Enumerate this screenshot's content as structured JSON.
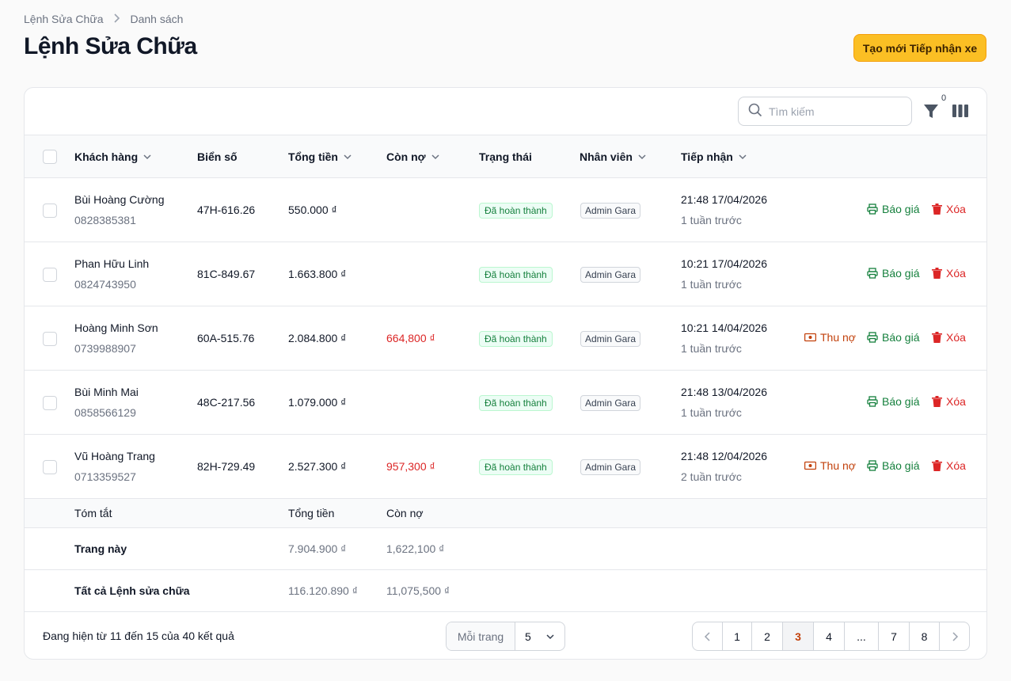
{
  "breadcrumb": {
    "root": "Lệnh Sửa Chữa",
    "current": "Danh sách"
  },
  "page_title": "Lệnh Sửa Chữa",
  "create_button": "Tạo mới Tiếp nhận xe",
  "toolbar": {
    "search_placeholder": "Tìm kiếm",
    "filter_count": "0"
  },
  "columns": {
    "customer": "Khách hàng",
    "plate": "Biển số",
    "total": "Tổng tiền",
    "debt": "Còn nợ",
    "status": "Trạng thái",
    "staff": "Nhân viên",
    "received": "Tiếp nhận"
  },
  "rows": [
    {
      "name": "Bùi Hoàng Cường",
      "phone": "0828385381",
      "plate": "47H-616.26",
      "total": "550.000 ₫",
      "debt": "",
      "status": "Đã hoàn thành",
      "staff": "Admin Gara",
      "time": "21:48 17/04/2026",
      "ago": "1 tuần trước"
    },
    {
      "name": "Phan Hữu Linh",
      "phone": "0824743950",
      "plate": "81C-849.67",
      "total": "1.663.800 ₫",
      "debt": "",
      "status": "Đã hoàn thành",
      "staff": "Admin Gara",
      "time": "10:21 17/04/2026",
      "ago": "1 tuần trước"
    },
    {
      "name": "Hoàng Minh Sơn",
      "phone": "0739988907",
      "plate": "60A-515.76",
      "total": "2.084.800 ₫",
      "debt": "664,800 ₫",
      "status": "Đã hoàn thành",
      "staff": "Admin Gara",
      "time": "10:21 14/04/2026",
      "ago": "1 tuần trước"
    },
    {
      "name": "Bùi Minh Mai",
      "phone": "0858566129",
      "plate": "48C-217.56",
      "total": "1.079.000 ₫",
      "debt": "",
      "status": "Đã hoàn thành",
      "staff": "Admin Gara",
      "time": "21:48 13/04/2026",
      "ago": "1 tuần trước"
    },
    {
      "name": "Vũ Hoàng Trang",
      "phone": "0713359527",
      "plate": "82H-729.49",
      "total": "2.527.300 ₫",
      "debt": "957,300 ₫",
      "status": "Đã hoàn thành",
      "staff": "Admin Gara",
      "time": "21:48 12/04/2026",
      "ago": "2 tuần trước"
    }
  ],
  "actions": {
    "collect": "Thu nợ",
    "quote": "Báo giá",
    "delete": "Xóa"
  },
  "summary": {
    "head": {
      "label": "Tóm tắt",
      "total": "Tổng tiền",
      "debt": "Còn nợ"
    },
    "page": {
      "label": "Trang này",
      "total": "7.904.900 ₫",
      "debt": "1,622,100 ₫"
    },
    "all": {
      "label": "Tất cả Lệnh sửa chữa",
      "total": "116.120.890 ₫",
      "debt": "11,075,500 ₫"
    }
  },
  "footer": {
    "showing": "Đang hiện từ 11 đến 15 của 40 kết quả",
    "per_page_label": "Mỗi trang",
    "per_page_value": "5",
    "pages": [
      "1",
      "2",
      "3",
      "4",
      "...",
      "7",
      "8"
    ],
    "current_page": "3"
  },
  "colors": {
    "accent": "#fbbf24",
    "success": "#15803d",
    "danger": "#dc2626",
    "warning": "#c2410c"
  }
}
